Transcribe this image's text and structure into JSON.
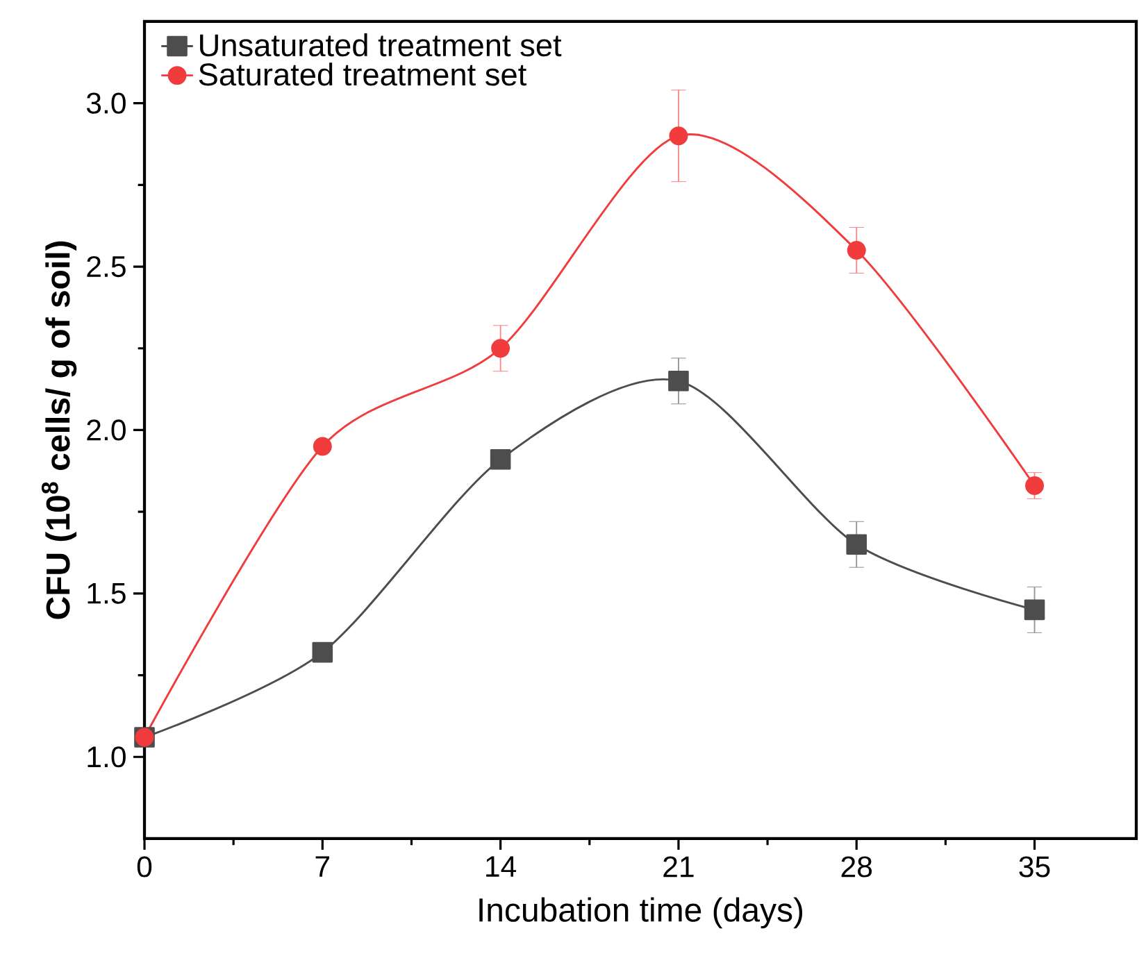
{
  "chart_data": {
    "type": "line",
    "xlabel": "Incubation time (days)",
    "ylabel": "**CFU (10$^{8}$ cells/ g of soil)**",
    "x": [
      0,
      7,
      14,
      21,
      28,
      35
    ],
    "series": [
      {
        "name": "Unsaturated treatment set",
        "color": "#4d4d4d",
        "marker": "square",
        "values": [
          1.06,
          1.32,
          1.91,
          2.15,
          1.65,
          1.45
        ],
        "errors": [
          null,
          null,
          null,
          0.07,
          0.07,
          0.07
        ]
      },
      {
        "name": "Saturated treatment set",
        "color": "#f03c3c",
        "marker": "circle",
        "values": [
          1.06,
          1.95,
          2.25,
          2.9,
          2.55,
          1.83
        ],
        "errors": [
          null,
          null,
          0.07,
          0.14,
          0.07,
          0.04
        ]
      }
    ],
    "xlim": [
      0,
      39
    ],
    "ylim": [
      0.75,
      3.25
    ],
    "xticks": [
      0,
      7,
      14,
      21,
      28,
      35
    ],
    "yticks": [
      {
        "value": 1,
        "label": "1.0"
      },
      1.5,
      {
        "value": 2,
        "label": "2.0"
      },
      2.5,
      {
        "value": 3,
        "label": "3.0"
      }
    ],
    "grid": false,
    "legend": "top left",
    "line_style": "solid"
  }
}
